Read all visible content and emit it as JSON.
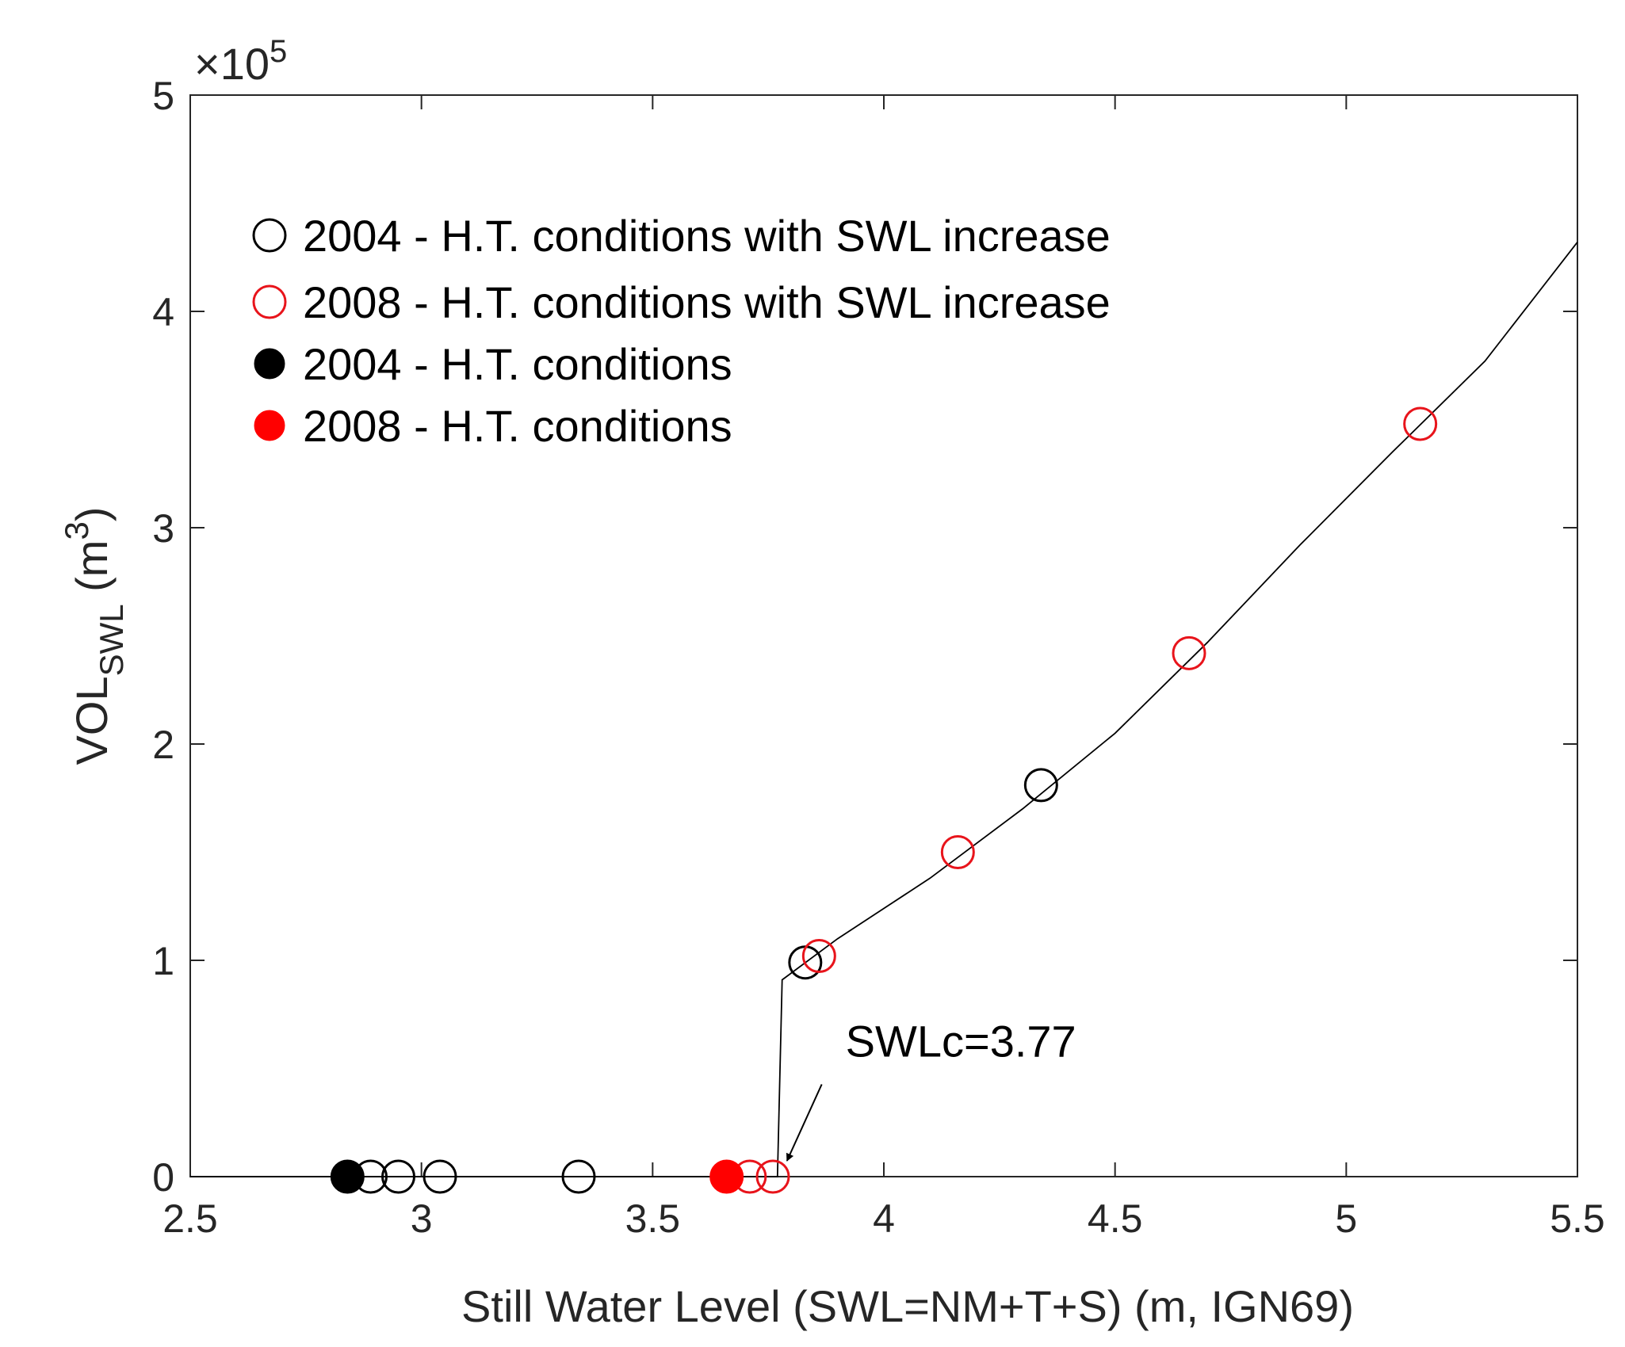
{
  "chart_data": {
    "type": "scatter",
    "title": "",
    "xlabel": "Still Water Level (SWL=NM+T+S) (m, IGN69)",
    "ylabel": {
      "main": "VOL",
      "subscript": "SWL",
      "unit_open": " (m",
      "unit_superscript": "3",
      "unit_close": ")"
    },
    "xlim": [
      2.5,
      5.5
    ],
    "ylim": [
      0,
      500000
    ],
    "x_ticks": [
      2.5,
      3,
      3.5,
      4,
      4.5,
      5,
      5.5
    ],
    "x_tick_labels": [
      "2.5",
      "3",
      "3.5",
      "4",
      "4.5",
      "5",
      "5.5"
    ],
    "y_ticks": [
      0,
      100000,
      200000,
      300000,
      400000,
      500000
    ],
    "y_tick_labels": [
      "0",
      "1",
      "2",
      "3",
      "4",
      "5"
    ],
    "y_exponent": {
      "prefix": "×10",
      "power": "5"
    },
    "grid": false,
    "legend_position": "top-left",
    "series": [
      {
        "name": "2004 - H.T. conditions with SWL increase",
        "marker": "open-circle",
        "color": "#000000",
        "points": [
          [
            2.89,
            0
          ],
          [
            2.95,
            0
          ],
          [
            3.04,
            0
          ],
          [
            3.34,
            0
          ],
          [
            3.83,
            99000
          ],
          [
            4.34,
            181000
          ]
        ]
      },
      {
        "name": "2008 - H.T. conditions with SWL increase",
        "marker": "open-circle",
        "color": "#e8141b",
        "points": [
          [
            3.71,
            0
          ],
          [
            3.76,
            0
          ],
          [
            3.86,
            102000
          ],
          [
            4.16,
            150000
          ],
          [
            4.66,
            242000
          ],
          [
            5.16,
            348000
          ]
        ]
      },
      {
        "name": "2004 - H.T. conditions",
        "marker": "filled-circle",
        "color": "#000000",
        "points": [
          [
            2.84,
            0
          ]
        ]
      },
      {
        "name": "2008 - H.T. conditions",
        "marker": "filled-circle",
        "color": "#ff0000",
        "points": [
          [
            3.66,
            0
          ]
        ]
      }
    ],
    "curve": {
      "name": "fitted curve",
      "color": "#000000",
      "points": [
        [
          2.5,
          0
        ],
        [
          3.77,
          0
        ],
        [
          3.78,
          91000
        ],
        [
          3.9,
          110000
        ],
        [
          4.1,
          138000
        ],
        [
          4.3,
          170000
        ],
        [
          4.5,
          205000
        ],
        [
          4.7,
          247000
        ],
        [
          4.9,
          292000
        ],
        [
          5.1,
          335000
        ],
        [
          5.3,
          377000
        ],
        [
          5.5,
          432000
        ]
      ]
    },
    "annotation": {
      "text": "SWLc=3.77",
      "arrow_to": [
        3.77,
        0
      ],
      "text_at": [
        3.9,
        50000
      ]
    }
  }
}
